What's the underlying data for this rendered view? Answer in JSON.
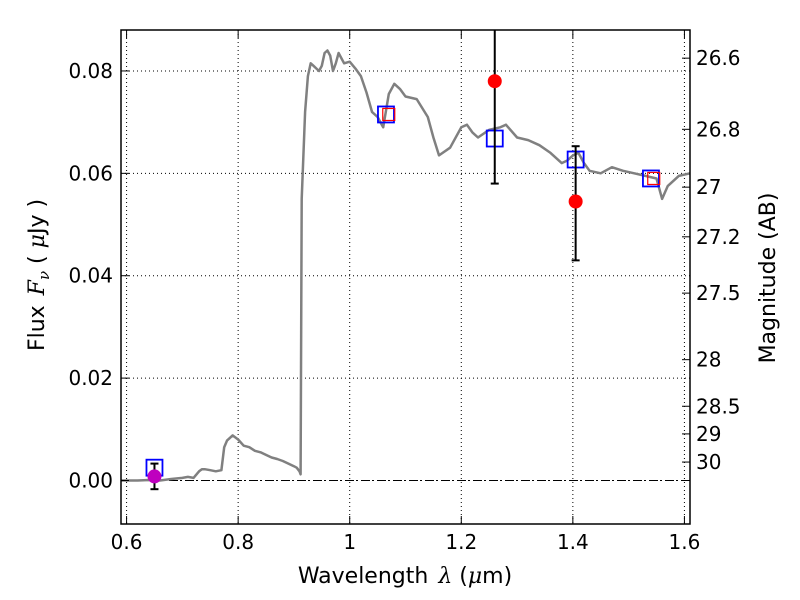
{
  "chart_data": {
    "type": "scatter",
    "title": "",
    "xlabel": "Wavelength λ (μm)",
    "xlabel_parts": {
      "word": "Wavelength",
      "symbol": "λ",
      "open": " (",
      "unit_mu": "μ",
      "unit_m": "m)"
    },
    "ylabel": "Flux F_ν ( μJy )",
    "ylabel_parts": {
      "word": "Flux",
      "symbol": "F",
      "sub": "ν",
      "open": " ( ",
      "unit_mu": "μ",
      "unit_rest": "Jy )"
    },
    "y2label": "Magnitude (AB)",
    "xlim": [
      0.59,
      1.61
    ],
    "ylim": [
      -0.0085,
      0.088
    ],
    "grid": true,
    "x_ticks": [
      {
        "value": 0.6,
        "label": "0.6"
      },
      {
        "value": 0.8,
        "label": "0.8"
      },
      {
        "value": 1.0,
        "label": "1"
      },
      {
        "value": 1.2,
        "label": "1.2"
      },
      {
        "value": 1.4,
        "label": "1.4"
      },
      {
        "value": 1.6,
        "label": "1.6"
      }
    ],
    "y_ticks": [
      {
        "value": 0.0,
        "label": "0.00"
      },
      {
        "value": 0.02,
        "label": "0.02"
      },
      {
        "value": 0.04,
        "label": "0.04"
      },
      {
        "value": 0.06,
        "label": "0.06"
      },
      {
        "value": 0.08,
        "label": "0.08"
      }
    ],
    "y2_ticks": [
      {
        "label": "26.6",
        "flux": 0.0825
      },
      {
        "label": "26.8",
        "flux": 0.0686
      },
      {
        "label": "27",
        "flux": 0.0573
      },
      {
        "label": "27.2",
        "flux": 0.0476
      },
      {
        "label": "27.5",
        "flux": 0.0366
      },
      {
        "label": "28",
        "flux": 0.0236
      },
      {
        "label": "28.5",
        "flux": 0.0145
      },
      {
        "label": "29",
        "flux": 0.0091
      },
      {
        "label": "30",
        "flux": 0.0036
      }
    ],
    "zero_line": 0.0,
    "model_spectrum": {
      "color": "#808080",
      "x": [
        0.59,
        0.62,
        0.64,
        0.66,
        0.68,
        0.7,
        0.71,
        0.72,
        0.73,
        0.735,
        0.74,
        0.75,
        0.76,
        0.77,
        0.775,
        0.78,
        0.79,
        0.8,
        0.81,
        0.82,
        0.83,
        0.84,
        0.85,
        0.86,
        0.87,
        0.88,
        0.89,
        0.9,
        0.905,
        0.91,
        0.912,
        0.914,
        0.92,
        0.925,
        0.93,
        0.935,
        0.94,
        0.945,
        0.95,
        0.955,
        0.96,
        0.965,
        0.97,
        0.975,
        0.98,
        0.99,
        1.0,
        1.01,
        1.02,
        1.03,
        1.04,
        1.05,
        1.06,
        1.07,
        1.08,
        1.09,
        1.1,
        1.12,
        1.14,
        1.15,
        1.16,
        1.18,
        1.2,
        1.21,
        1.22,
        1.23,
        1.25,
        1.27,
        1.28,
        1.3,
        1.32,
        1.34,
        1.36,
        1.38,
        1.39,
        1.4,
        1.41,
        1.42,
        1.43,
        1.45,
        1.47,
        1.49,
        1.51,
        1.53,
        1.55,
        1.56,
        1.57,
        1.59,
        1.61
      ],
      "y": [
        0.0,
        0.0,
        0.0001,
        0.0,
        0.0003,
        0.0005,
        0.0007,
        0.0005,
        0.0018,
        0.0022,
        0.0022,
        0.002,
        0.0018,
        0.002,
        0.0065,
        0.0078,
        0.0088,
        0.008,
        0.0068,
        0.0065,
        0.0058,
        0.0055,
        0.005,
        0.0045,
        0.0042,
        0.0038,
        0.0033,
        0.0028,
        0.0025,
        0.0018,
        0.0012,
        0.055,
        0.072,
        0.079,
        0.0815,
        0.081,
        0.0805,
        0.08,
        0.081,
        0.0835,
        0.084,
        0.083,
        0.08,
        0.0815,
        0.0835,
        0.0815,
        0.0818,
        0.0805,
        0.079,
        0.0758,
        0.072,
        0.071,
        0.069,
        0.0755,
        0.0775,
        0.0765,
        0.075,
        0.0745,
        0.071,
        0.067,
        0.0635,
        0.065,
        0.069,
        0.0695,
        0.068,
        0.067,
        0.0685,
        0.069,
        0.0695,
        0.067,
        0.0665,
        0.0655,
        0.064,
        0.062,
        0.0625,
        0.0635,
        0.064,
        0.062,
        0.0605,
        0.06,
        0.0612,
        0.0605,
        0.06,
        0.0595,
        0.059,
        0.055,
        0.0575,
        0.0595,
        0.06
      ]
    },
    "series": [
      {
        "marker": "open-square",
        "color": "#0000ff",
        "x": [
          0.65,
          1.065,
          1.26,
          1.405,
          1.54
        ],
        "y": [
          0.0025,
          0.0715,
          0.0668,
          0.0627,
          0.059
        ]
      },
      {
        "marker": "filled-circle",
        "color": "#ff0000",
        "x": [
          1.26,
          1.405
        ],
        "y": [
          0.078,
          0.0545
        ],
        "yerr": [
          [
            0.02,
            0.0115
          ],
          [
            0.01,
            0.0108
          ]
        ]
      },
      {
        "marker": "filled-circle",
        "color": "#bf00bf",
        "x": [
          0.65
        ],
        "y": [
          0.0008
        ],
        "yerr": [
          [
            0.0025
          ],
          [
            0.0025
          ]
        ]
      },
      {
        "marker": "small-open-square",
        "color": "#ff0000",
        "x": [
          1.07,
          1.545
        ],
        "y": [
          0.0715,
          0.059
        ]
      }
    ]
  }
}
